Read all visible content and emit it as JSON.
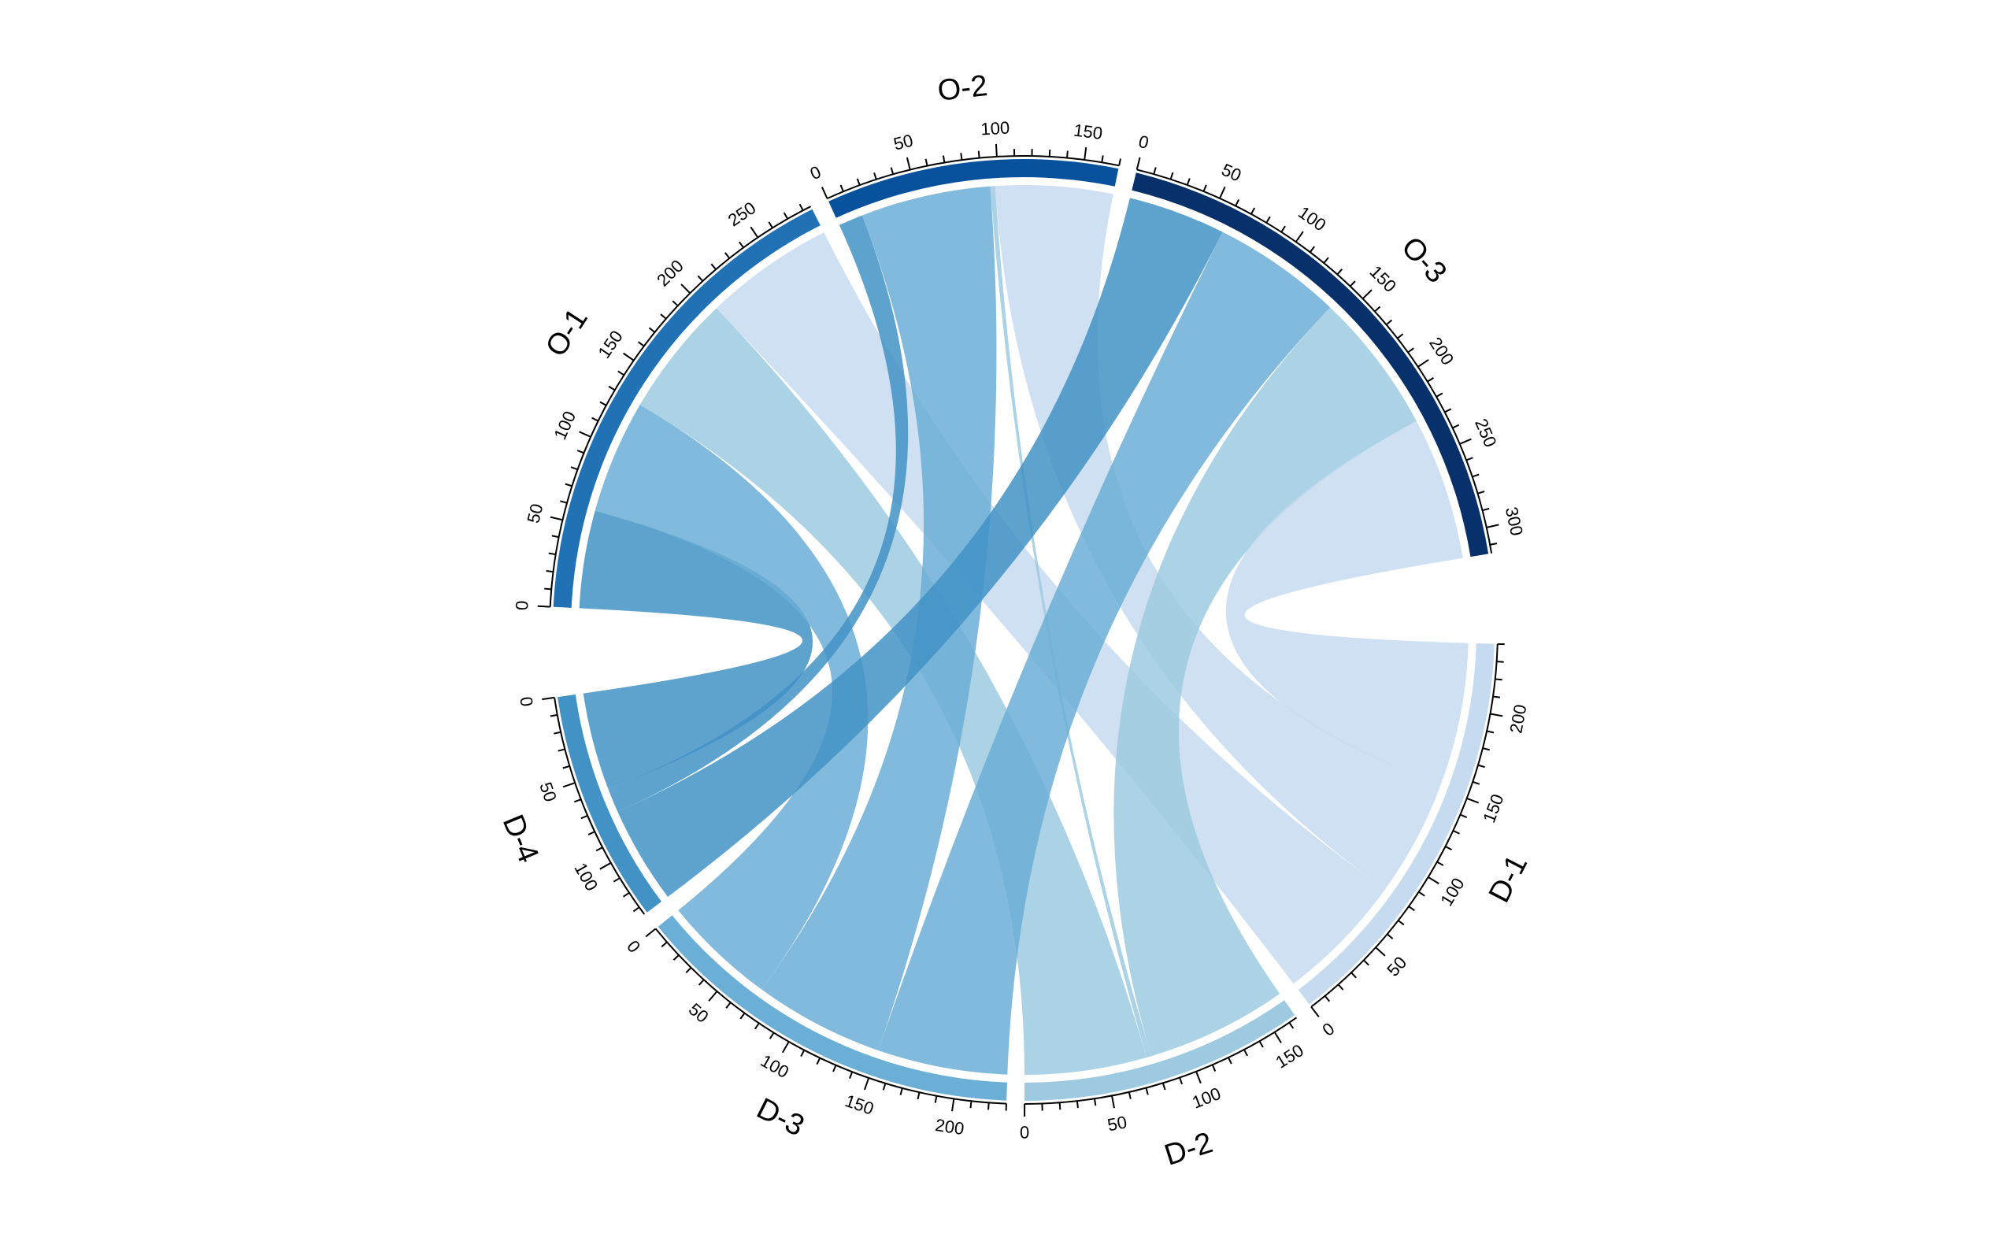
{
  "chart_data": {
    "type": "chord",
    "sectors": [
      {
        "name": "O-1",
        "total": 285,
        "role": "origin",
        "color": "#2171b5"
      },
      {
        "name": "O-2",
        "total": 170,
        "role": "origin",
        "color": "#08519c"
      },
      {
        "name": "O-3",
        "total": 315,
        "role": "origin",
        "color": "#08306b"
      },
      {
        "name": "D-1",
        "total": 240,
        "role": "destination",
        "color": "#c6dbef"
      },
      {
        "name": "D-2",
        "total": 165,
        "role": "destination",
        "color": "#9ecae1"
      },
      {
        "name": "D-3",
        "total": 230,
        "role": "destination",
        "color": "#6baed6"
      },
      {
        "name": "D-4",
        "total": 135,
        "role": "destination",
        "color": "#4292c6"
      }
    ],
    "flows": [
      {
        "from": "O-1",
        "to": "D-4",
        "value": 60
      },
      {
        "from": "O-1",
        "to": "D-3",
        "value": 70
      },
      {
        "from": "O-1",
        "to": "D-2",
        "value": 75
      },
      {
        "from": "O-1",
        "to": "D-1",
        "value": 80
      },
      {
        "from": "O-2",
        "to": "D-4",
        "value": 15
      },
      {
        "from": "O-2",
        "to": "D-3",
        "value": 80
      },
      {
        "from": "O-2",
        "to": "D-2",
        "value": 3
      },
      {
        "from": "O-2",
        "to": "D-1",
        "value": 72
      },
      {
        "from": "O-3",
        "to": "D-4",
        "value": 60
      },
      {
        "from": "O-3",
        "to": "D-3",
        "value": 80
      },
      {
        "from": "O-3",
        "to": "D-2",
        "value": 87
      },
      {
        "from": "O-3",
        "to": "D-1",
        "value": 88
      }
    ],
    "tick_major_step": 50,
    "tick_minor_step": 10,
    "legend": "none",
    "grid": false
  }
}
